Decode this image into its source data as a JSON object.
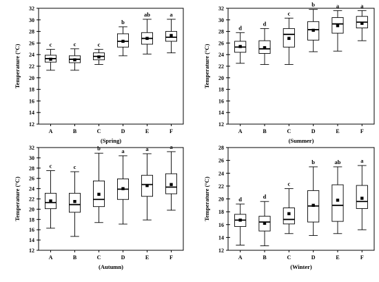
{
  "chart_data": [
    {
      "type": "box",
      "title": "(Spring)",
      "ylabel": "Temperature (°C)",
      "ylim": [
        12,
        32
      ],
      "yticks": [
        12,
        14,
        16,
        18,
        20,
        22,
        24,
        26,
        28,
        30,
        32
      ],
      "categories": [
        "A",
        "B",
        "C",
        "D",
        "E",
        "F"
      ],
      "boxes": [
        {
          "min": 21.3,
          "q1": 22.7,
          "median": 23.3,
          "q3": 23.9,
          "max": 24.9,
          "mean": 23.2,
          "letter": "c"
        },
        {
          "min": 21.3,
          "q1": 22.6,
          "median": 23.2,
          "q3": 23.8,
          "max": 25.0,
          "mean": 23.1,
          "letter": "c"
        },
        {
          "min": 22.3,
          "q1": 23.1,
          "median": 23.7,
          "q3": 24.3,
          "max": 24.9,
          "mean": 23.6,
          "letter": "c"
        },
        {
          "min": 23.8,
          "q1": 25.3,
          "median": 26.3,
          "q3": 27.6,
          "max": 28.8,
          "mean": 26.3,
          "letter": "b"
        },
        {
          "min": 24.1,
          "q1": 25.8,
          "median": 26.8,
          "q3": 27.8,
          "max": 30.1,
          "mean": 26.8,
          "letter": "ab"
        },
        {
          "min": 24.3,
          "q1": 26.3,
          "median": 27.0,
          "q3": 28.0,
          "max": 30.1,
          "mean": 27.3,
          "letter": "a"
        }
      ]
    },
    {
      "type": "box",
      "title": "(Summer)",
      "ylabel": "Temperature (°C)",
      "ylim": [
        12,
        32
      ],
      "yticks": [
        12,
        14,
        16,
        18,
        20,
        22,
        24,
        26,
        28,
        30,
        32
      ],
      "categories": [
        "A",
        "B",
        "C",
        "D",
        "E",
        "F"
      ],
      "boxes": [
        {
          "min": 22.5,
          "q1": 24.4,
          "median": 25.3,
          "q3": 26.3,
          "max": 27.8,
          "mean": 25.4,
          "letter": "d"
        },
        {
          "min": 22.3,
          "q1": 24.2,
          "median": 25.0,
          "q3": 26.4,
          "max": 28.5,
          "mean": 25.2,
          "letter": "d"
        },
        {
          "min": 22.3,
          "q1": 25.3,
          "median": 27.5,
          "q3": 28.5,
          "max": 30.3,
          "mean": 26.8,
          "letter": "c"
        },
        {
          "min": 24.5,
          "q1": 26.5,
          "median": 28.3,
          "q3": 29.7,
          "max": 31.8,
          "mean": 28.2,
          "letter": "b"
        },
        {
          "min": 24.6,
          "q1": 27.7,
          "median": 29.3,
          "q3": 30.4,
          "max": 31.6,
          "mean": 29.0,
          "letter": "a"
        },
        {
          "min": 26.4,
          "q1": 28.6,
          "median": 29.6,
          "q3": 30.6,
          "max": 31.6,
          "mean": 29.4,
          "letter": "a"
        }
      ]
    },
    {
      "type": "box",
      "title": "(Autumn)",
      "ylabel": "Temperature (°C)",
      "ylim": [
        12,
        32
      ],
      "yticks": [
        12,
        14,
        16,
        18,
        20,
        22,
        24,
        26,
        28,
        30,
        32
      ],
      "categories": [
        "A",
        "B",
        "C",
        "D",
        "E",
        "F"
      ],
      "boxes": [
        {
          "min": 16.3,
          "q1": 20.1,
          "median": 21.3,
          "q3": 23.1,
          "max": 27.5,
          "mean": 21.6,
          "letter": "c"
        },
        {
          "min": 14.7,
          "q1": 19.4,
          "median": 20.9,
          "q3": 23.1,
          "max": 27.3,
          "mean": 21.5,
          "letter": "c"
        },
        {
          "min": 17.4,
          "q1": 20.5,
          "median": 21.9,
          "q3": 25.5,
          "max": 30.9,
          "mean": 22.9,
          "letter": "b"
        },
        {
          "min": 17.1,
          "q1": 21.9,
          "median": 23.9,
          "q3": 25.9,
          "max": 30.4,
          "mean": 24.0,
          "letter": "a"
        },
        {
          "min": 17.9,
          "q1": 22.5,
          "median": 24.8,
          "q3": 26.6,
          "max": 30.8,
          "mean": 24.6,
          "letter": "a"
        },
        {
          "min": 19.8,
          "q1": 23.0,
          "median": 24.3,
          "q3": 26.9,
          "max": 31.2,
          "mean": 24.8,
          "letter": "a"
        }
      ]
    },
    {
      "type": "box",
      "title": "(Winter)",
      "ylabel": "Temperature (°C)",
      "ylim": [
        12,
        28
      ],
      "yticks": [
        12,
        14,
        16,
        18,
        20,
        22,
        24,
        26,
        28
      ],
      "categories": [
        "A",
        "B",
        "C",
        "D",
        "E",
        "F"
      ],
      "boxes": [
        {
          "min": 12.8,
          "q1": 15.7,
          "median": 16.7,
          "q3": 17.6,
          "max": 19.2,
          "mean": 16.7,
          "letter": "d"
        },
        {
          "min": 12.7,
          "q1": 15.0,
          "median": 16.4,
          "q3": 17.3,
          "max": 19.6,
          "mean": 16.2,
          "letter": "d"
        },
        {
          "min": 14.6,
          "q1": 16.1,
          "median": 16.8,
          "q3": 18.6,
          "max": 21.6,
          "mean": 17.7,
          "letter": "c"
        },
        {
          "min": 14.3,
          "q1": 16.4,
          "median": 18.9,
          "q3": 21.3,
          "max": 25.0,
          "mean": 19.0,
          "letter": "b"
        },
        {
          "min": 14.6,
          "q1": 16.5,
          "median": 19.0,
          "q3": 22.2,
          "max": 25.0,
          "mean": 19.8,
          "letter": "ab"
        },
        {
          "min": 15.2,
          "q1": 18.5,
          "median": 19.6,
          "q3": 22.1,
          "max": 25.2,
          "mean": 20.1,
          "letter": "a"
        }
      ]
    }
  ]
}
